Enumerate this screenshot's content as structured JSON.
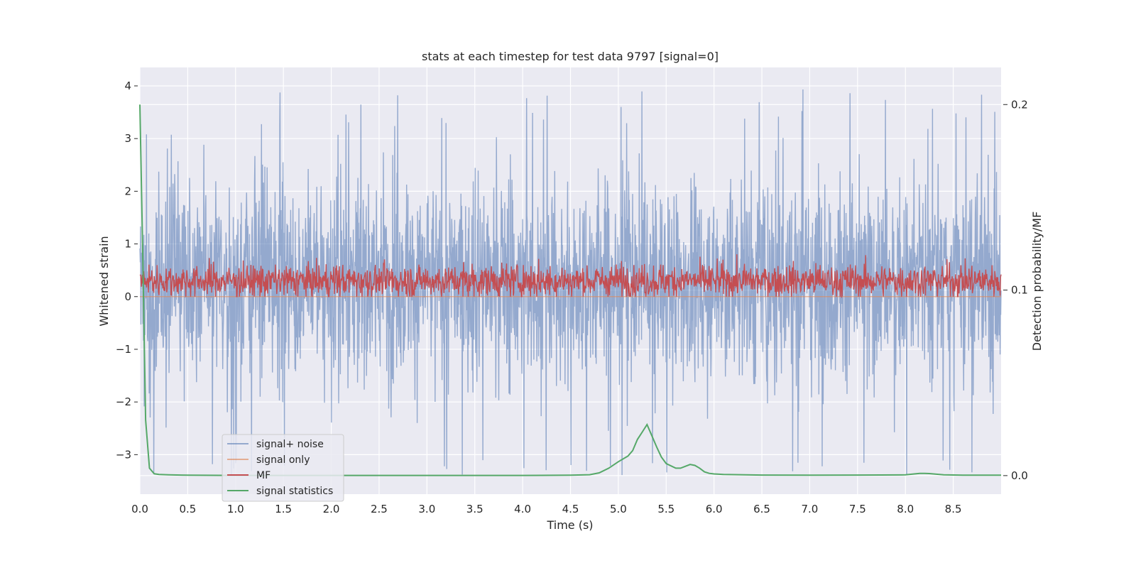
{
  "chart_data": {
    "type": "line",
    "title": "stats at each timestep for test data 9797 [signal=0]",
    "xlabel": "Time (s)",
    "ylabel": "Whitened strain",
    "y2label": "Detection probability/MF",
    "xlim": [
      0.0,
      9.0
    ],
    "ylim": [
      -3.75,
      4.35
    ],
    "y2lim": [
      -0.01,
      0.22
    ],
    "xticks": [
      "0.0",
      "0.5",
      "1.0",
      "1.5",
      "2.0",
      "2.5",
      "3.0",
      "3.5",
      "4.0",
      "4.5",
      "5.0",
      "5.5",
      "6.0",
      "6.5",
      "7.0",
      "7.5",
      "8.0",
      "8.5"
    ],
    "yticks": [
      "4",
      "3",
      "2",
      "1",
      "0",
      "−1",
      "−2",
      "−3"
    ],
    "y2ticks": [
      "0.2",
      "0.1",
      "0.0"
    ],
    "grid": true,
    "legend_position": "lower-left",
    "series": [
      {
        "name": "signal+ noise",
        "axis": "left",
        "color": "#4c72b0",
        "opacity": 0.55,
        "description": "dense whitened strain noise, approx range -3.4 to 4.0, mostly within -1.5..2.5",
        "approx_range": [
          -3.4,
          4.0
        ]
      },
      {
        "name": "signal only",
        "axis": "left",
        "color": "#dd8452",
        "opacity": 0.6,
        "values_constant": 0.0
      },
      {
        "name": "MF",
        "axis": "left",
        "color": "#c44e52",
        "description": "matched filter output fluctuating between ~0.0 and ~0.9",
        "approx_range": [
          0.0,
          0.9
        ]
      },
      {
        "name": "signal statistics",
        "axis": "right",
        "color": "#55a868",
        "x": [
          0.0,
          0.03,
          0.06,
          0.1,
          0.15,
          0.2,
          0.3,
          0.5,
          1.0,
          2.0,
          3.0,
          4.0,
          4.5,
          4.7,
          4.8,
          4.9,
          5.0,
          5.1,
          5.15,
          5.2,
          5.25,
          5.3,
          5.35,
          5.4,
          5.45,
          5.5,
          5.6,
          5.65,
          5.7,
          5.75,
          5.8,
          5.85,
          5.9,
          5.95,
          6.0,
          6.1,
          6.5,
          7.0,
          7.5,
          8.0,
          8.15,
          8.2,
          8.25,
          8.4,
          8.6,
          9.0
        ],
        "values": [
          0.2,
          0.12,
          0.03,
          0.004,
          0.001,
          0.0006,
          0.0004,
          0.0002,
          0.0001,
          0.0001,
          0.0001,
          0.0001,
          0.0002,
          0.0005,
          0.0015,
          0.004,
          0.0075,
          0.0105,
          0.0135,
          0.0195,
          0.0235,
          0.0275,
          0.0215,
          0.0155,
          0.01,
          0.0065,
          0.004,
          0.004,
          0.005,
          0.006,
          0.0055,
          0.004,
          0.002,
          0.0012,
          0.0009,
          0.0006,
          0.0003,
          0.0002,
          0.0003,
          0.0004,
          0.0012,
          0.0012,
          0.0011,
          0.0004,
          0.0002,
          0.0002
        ]
      }
    ]
  }
}
